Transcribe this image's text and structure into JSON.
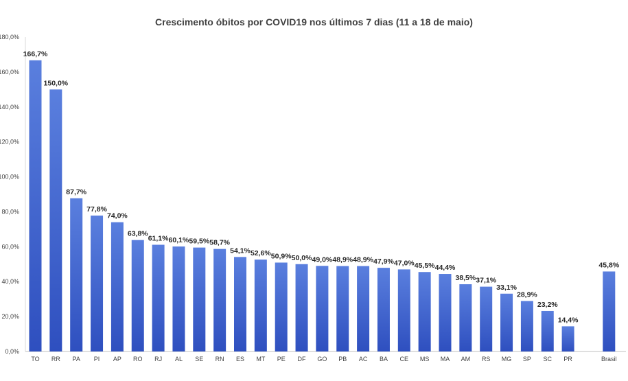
{
  "chart_data": {
    "type": "bar",
    "title": "Crescimento óbitos  por COVID19 nos últimos 7 dias (11 a 18 de maio)",
    "xlabel": "",
    "ylabel": "",
    "ylim": [
      0,
      180
    ],
    "y_ticks": [
      "0,0%",
      "20,0%",
      "40,0%",
      "60,0%",
      "80,0%",
      "100,0%",
      "120,0%",
      "140,0%",
      "160,0%",
      "180,0%"
    ],
    "grid": false,
    "legend": "none",
    "bar_color_top": "#5a7fde",
    "bar_color_bottom": "#2e4fbf",
    "categories": [
      "TO",
      "RR",
      "PA",
      "PI",
      "AP",
      "RO",
      "RJ",
      "AL",
      "SE",
      "RN",
      "ES",
      "MT",
      "PE",
      "DF",
      "GO",
      "PB",
      "AC",
      "BA",
      "CE",
      "MS",
      "MA",
      "AM",
      "RS",
      "MG",
      "SP",
      "SC",
      "PR",
      "",
      "Brasil"
    ],
    "values": [
      166.7,
      150.0,
      87.7,
      77.8,
      74.0,
      63.8,
      61.1,
      60.1,
      59.5,
      58.7,
      54.1,
      52.6,
      50.9,
      50.0,
      49.0,
      48.9,
      48.9,
      47.9,
      47.0,
      45.5,
      44.4,
      38.5,
      37.1,
      33.1,
      28.9,
      23.2,
      14.4,
      null,
      45.8
    ],
    "data_labels": [
      "166,7%",
      "150,0%",
      "87,7%",
      "77,8%",
      "74,0%",
      "63,8%",
      "61,1%",
      "60,1%",
      "59,5%",
      "58,7%",
      "54,1%",
      "52,6%",
      "50,9%",
      "50,0%",
      "49,0%",
      "48,9%",
      "48,9%",
      "47,9%",
      "47,0%",
      "45,5%",
      "44,4%",
      "38,5%",
      "37,1%",
      "33,1%",
      "28,9%",
      "23,2%",
      "14,4%",
      "",
      "45,8%"
    ]
  }
}
